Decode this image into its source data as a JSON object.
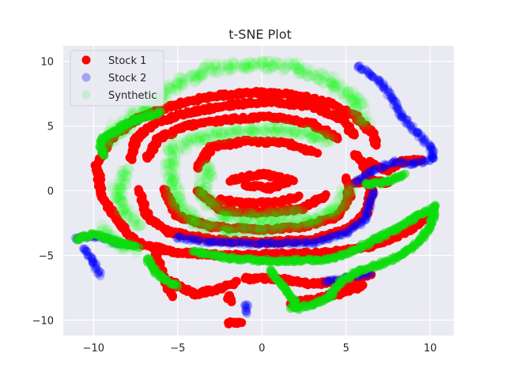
{
  "chart_data": {
    "type": "scatter",
    "title": "t-SNE Plot",
    "xlabel": "",
    "ylabel": "",
    "xlim": [
      -11.8,
      11.4
    ],
    "ylim": [
      -11.2,
      11.2
    ],
    "xticks": [
      -10,
      -5,
      0,
      5,
      10
    ],
    "yticks": [
      -10,
      -5,
      0,
      5,
      10
    ],
    "grid": true,
    "legend_position": "top-left",
    "background": "#eaeaf2",
    "series": [
      {
        "name": "Stock 1",
        "color": "#ff0000",
        "alpha": 1.0,
        "paths": [
          [
            [
              -8.5,
              -2.5
            ],
            [
              -9.5,
              -0.5
            ],
            [
              -9.8,
              2
            ],
            [
              -9,
              4
            ],
            [
              -7.5,
              5.5
            ],
            [
              -5.5,
              6.5
            ],
            [
              -3,
              7.3
            ],
            [
              -0.5,
              7.6
            ],
            [
              2,
              7.4
            ],
            [
              4,
              6.8
            ],
            [
              5.5,
              5.8
            ],
            [
              6.5,
              4.5
            ],
            [
              6.8,
              3.5
            ]
          ],
          [
            [
              -8.5,
              -2.5
            ],
            [
              -7.5,
              -4
            ],
            [
              -5,
              -4.8
            ],
            [
              -2,
              -5
            ],
            [
              1,
              -4.9
            ],
            [
              4,
              -4.8
            ],
            [
              6.5,
              -4.3
            ],
            [
              8.5,
              -3.3
            ],
            [
              9.8,
              -2
            ]
          ],
          [
            [
              -7.8,
              2.5
            ],
            [
              -7.5,
              4
            ],
            [
              -6.3,
              5.3
            ],
            [
              -4.5,
              6
            ],
            [
              -2,
              6.6
            ],
            [
              0.5,
              6.9
            ],
            [
              3,
              6.5
            ],
            [
              4.8,
              5.5
            ],
            [
              5.5,
              4.3
            ]
          ],
          [
            [
              -7.3,
              0
            ],
            [
              -6.8,
              -2
            ],
            [
              -5.5,
              -3.2
            ],
            [
              -3,
              -3.8
            ],
            [
              0,
              -4
            ],
            [
              3,
              -3.8
            ],
            [
              5,
              -3
            ],
            [
              6.2,
              -1.8
            ],
            [
              6.5,
              0
            ],
            [
              6.2,
              1.8
            ],
            [
              5.5,
              2.8
            ]
          ],
          [
            [
              -6.8,
              2.5
            ],
            [
              -6.2,
              4
            ],
            [
              -4.5,
              5
            ],
            [
              -2,
              5.5
            ],
            [
              0.5,
              5.7
            ],
            [
              3,
              5.2
            ],
            [
              4.5,
              4
            ]
          ],
          [
            [
              -5.8,
              0
            ],
            [
              -5,
              -2
            ],
            [
              -3,
              -2.8
            ],
            [
              0,
              -3
            ],
            [
              2.5,
              -2.8
            ],
            [
              4.5,
              -2
            ],
            [
              5.2,
              -0.5
            ],
            [
              5,
              1
            ]
          ],
          [
            [
              -3.8,
              1.8
            ],
            [
              -3,
              3.4
            ],
            [
              -1,
              3.8
            ],
            [
              1.5,
              3.7
            ],
            [
              3.3,
              2.9
            ]
          ],
          [
            [
              -3.8,
              0
            ],
            [
              -2.5,
              -1.5
            ],
            [
              0,
              -1.7
            ],
            [
              2.5,
              -1.4
            ],
            [
              3.8,
              -0.3
            ]
          ],
          [
            [
              -1.8,
              0.8
            ],
            [
              0,
              1.3
            ],
            [
              1.8,
              0.8
            ],
            [
              0.5,
              0.2
            ],
            [
              -1,
              0.4
            ]
          ],
          [
            [
              -2.5,
              -0.7
            ],
            [
              -1,
              -1
            ],
            [
              1,
              -0.9
            ],
            [
              2.2,
              -0.4
            ]
          ],
          [
            [
              -5.5,
              -7
            ],
            [
              -4,
              -8
            ],
            [
              -2.5,
              -7.6
            ],
            [
              -1.5,
              -7
            ]
          ],
          [
            [
              -1,
              -6.8
            ],
            [
              1,
              -6.8
            ],
            [
              3,
              -7.2
            ],
            [
              5,
              -7
            ],
            [
              6.5,
              -6.5
            ]
          ],
          [
            [
              1.8,
              -8.7
            ],
            [
              3.5,
              -8.3
            ],
            [
              5,
              -7.8
            ],
            [
              6,
              -7.3
            ]
          ],
          [
            [
              -6.3,
              -5
            ],
            [
              -5.8,
              -6.8
            ],
            [
              -5.3,
              -8.2
            ]
          ],
          [
            [
              6.5,
              2.2
            ],
            [
              7.5,
              1.5
            ],
            [
              8.2,
              2.2
            ],
            [
              9.5,
              2.4
            ]
          ],
          [
            [
              5.5,
              0.6
            ],
            [
              6.3,
              0.8
            ],
            [
              7.5,
              0.6
            ]
          ],
          [
            [
              -2,
              -8.2
            ],
            [
              -1.8,
              -8.6
            ]
          ],
          [
            [
              -2,
              -10.2
            ],
            [
              -1.2,
              -10.2
            ]
          ]
        ]
      },
      {
        "name": "Stock 2",
        "color": "#0000ff",
        "alpha": 0.25,
        "paths": [
          [
            [
              5.7,
              9.6
            ],
            [
              7,
              8.5
            ],
            [
              7.8,
              7
            ],
            [
              8.3,
              5.8
            ],
            [
              9.2,
              4.5
            ],
            [
              10,
              3.4
            ],
            [
              10.2,
              2.5
            ]
          ],
          [
            [
              10.2,
              2.5
            ],
            [
              9,
              2.1
            ],
            [
              7.8,
              2.2
            ],
            [
              6.5,
              1.5
            ],
            [
              5.5,
              0.6
            ]
          ],
          [
            [
              -11,
              -3.7
            ],
            [
              -10,
              -3.5
            ],
            [
              -9.2,
              -3.7
            ],
            [
              -8.3,
              -4.2
            ]
          ],
          [
            [
              -10.5,
              -4.5
            ],
            [
              -10,
              -5.5
            ],
            [
              -9.6,
              -6.6
            ]
          ],
          [
            [
              -5,
              -3.6
            ],
            [
              -3,
              -4
            ],
            [
              0,
              -4.1
            ],
            [
              3,
              -4
            ],
            [
              5,
              -3.3
            ],
            [
              6.2,
              -2.2
            ],
            [
              6.6,
              0
            ]
          ],
          [
            [
              -0.9,
              -8.8
            ],
            [
              -0.9,
              -9.5
            ]
          ],
          [
            [
              3.8,
              -7
            ],
            [
              5,
              -6.7
            ],
            [
              6.5,
              -6.4
            ]
          ]
        ]
      },
      {
        "name": "Synthetic",
        "color": "#00ff00",
        "alpha": 0.1,
        "paths": [
          [
            [
              -8.5,
              4.5
            ],
            [
              -7,
              6.3
            ],
            [
              -5,
              8.3
            ],
            [
              -3,
              9.4
            ],
            [
              -0.5,
              9.8
            ],
            [
              2,
              9.5
            ],
            [
              4,
              8.5
            ],
            [
              5.5,
              7
            ],
            [
              6.2,
              5.2
            ]
          ],
          [
            [
              -5.3,
              3.5
            ],
            [
              -5.5,
              1
            ],
            [
              -5,
              -1
            ],
            [
              -4,
              -2.5
            ],
            [
              -2,
              -3
            ],
            [
              0.5,
              -2.9
            ],
            [
              3,
              -2.4
            ],
            [
              4.5,
              -1.4
            ],
            [
              5.2,
              0.2
            ]
          ],
          [
            [
              -4.8,
              3.5
            ],
            [
              -3,
              4.3
            ],
            [
              -0.5,
              4.7
            ],
            [
              2,
              4.6
            ],
            [
              4.2,
              3.9
            ]
          ],
          [
            [
              -3.2,
              1.8
            ],
            [
              -3.5,
              0
            ],
            [
              -2.5,
              -1.8
            ],
            [
              0,
              -2.1
            ],
            [
              2.5,
              -1.8
            ]
          ],
          [
            [
              -8.2,
              1.5
            ],
            [
              -8.6,
              0
            ],
            [
              -8.2,
              -1.5
            ],
            [
              -7.3,
              -2.7
            ]
          ],
          [
            [
              -9.4,
              -3
            ],
            [
              -8.5,
              -4.1
            ],
            [
              -7.5,
              -4.5
            ]
          ],
          [
            [
              -9.2,
              3.5
            ],
            [
              -8.8,
              4.5
            ],
            [
              -8.5,
              5
            ]
          ]
        ]
      },
      {
        "name": "",
        "color": "#0ddc0d",
        "alpha": 0.55,
        "paths": [
          [
            [
              -11,
              -3.7
            ],
            [
              -10,
              -3.4
            ],
            [
              -9.2,
              -3.7
            ],
            [
              -8,
              -4.2
            ],
            [
              -7.3,
              -4.4
            ]
          ],
          [
            [
              -4,
              -4.7
            ],
            [
              -2,
              -5.2
            ],
            [
              0,
              -5.4
            ],
            [
              2,
              -5.4
            ],
            [
              4,
              -5.3
            ],
            [
              5.5,
              -4.6
            ],
            [
              7,
              -3.6
            ],
            [
              8.2,
              -2.8
            ],
            [
              9.2,
              -1.9
            ],
            [
              9.9,
              -1.6
            ],
            [
              10.3,
              -1.2
            ],
            [
              10,
              -2.8
            ],
            [
              9.3,
              -4
            ],
            [
              8.2,
              -5
            ],
            [
              7,
              -5.7
            ],
            [
              5.8,
              -6.2
            ],
            [
              4.7,
              -7
            ],
            [
              4,
              -8.2
            ],
            [
              3,
              -8.8
            ],
            [
              1.7,
              -9.1
            ]
          ],
          [
            [
              -6.8,
              -5.3
            ],
            [
              -6,
              -6.7
            ],
            [
              -5,
              -7.4
            ]
          ],
          [
            [
              -9.4,
              2.8
            ],
            [
              -9.6,
              3.8
            ],
            [
              -8.8,
              4.6
            ],
            [
              -8,
              5.2
            ],
            [
              -6,
              6.1
            ]
          ],
          [
            [
              6.2,
              0.5
            ],
            [
              7.5,
              0.7
            ],
            [
              8.5,
              1.3
            ]
          ],
          [
            [
              0.5,
              -6.2
            ],
            [
              1.5,
              -7.8
            ],
            [
              2.2,
              -9.2
            ]
          ]
        ]
      }
    ]
  }
}
